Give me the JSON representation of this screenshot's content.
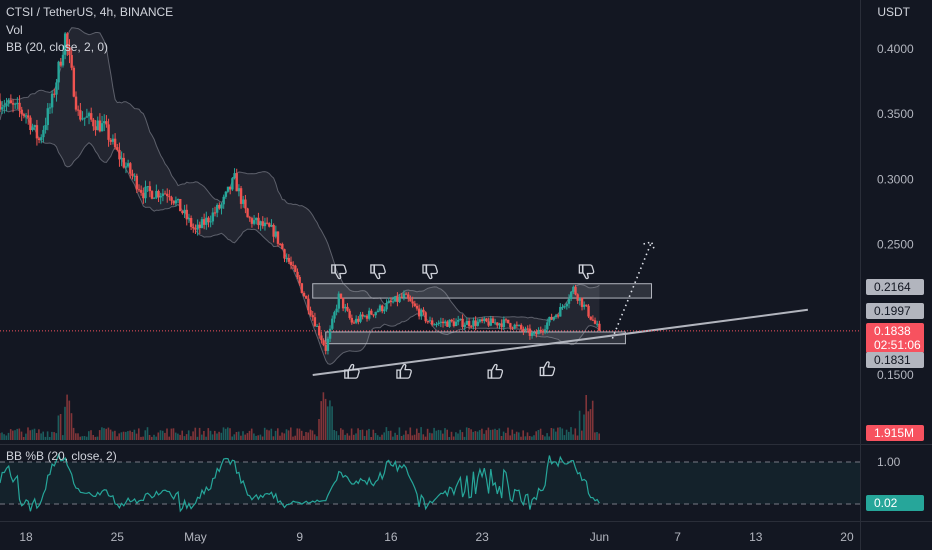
{
  "legend": {
    "symbol": "CTSI / TetherUS, 4h, BINANCE",
    "vol": "Vol",
    "bb": "BB (20, close, 2, 0)",
    "bbp": "BB %B (20, close, 2)"
  },
  "axis": {
    "unit": "USDT",
    "price_ticks": [
      "0.4000",
      "0.3500",
      "0.3000",
      "0.2500",
      "0.1500"
    ],
    "price_tick_values": [
      0.4,
      0.35,
      0.3,
      0.25,
      0.15
    ],
    "bbp_ticks": [
      "1.00"
    ],
    "date_ticks": [
      "18",
      "25",
      "May",
      "9",
      "16",
      "23",
      "Jun",
      "7",
      "13",
      "20"
    ]
  },
  "badges": {
    "upper_zone": "0.2164",
    "level_1997": "0.1997",
    "last_price": "0.1838",
    "countdown": "02:51:06",
    "lower_zone": "0.1831",
    "volume": "1.915M",
    "bbp_value": "0.02"
  },
  "colors": {
    "background": "#131722",
    "up": "#26a69a",
    "down": "#ef5350",
    "last_price": "#f7525f",
    "trendline": "#b2b5be",
    "bbp_line": "#26a69a"
  },
  "chart_data": {
    "type": "candlestick",
    "timeframe": "4h",
    "x_range": [
      "2021-04-16",
      "2021-06-21"
    ],
    "ylim": [
      0.135,
      0.415
    ],
    "log_scale": false,
    "grid": false,
    "key_points": [
      {
        "date": "2021-04-16",
        "price": 0.36
      },
      {
        "date": "2021-04-18",
        "price": 0.35
      },
      {
        "date": "2021-04-19",
        "price": 0.33
      },
      {
        "date": "2021-04-20",
        "price": 0.36
      },
      {
        "date": "2021-04-21",
        "price": 0.41
      },
      {
        "date": "2021-04-22",
        "price": 0.35
      },
      {
        "date": "2021-04-24",
        "price": 0.34
      },
      {
        "date": "2021-04-25",
        "price": 0.32
      },
      {
        "date": "2021-04-27",
        "price": 0.29
      },
      {
        "date": "2021-04-29",
        "price": 0.29
      },
      {
        "date": "2021-05-01",
        "price": 0.26
      },
      {
        "date": "2021-05-03",
        "price": 0.28
      },
      {
        "date": "2021-05-04",
        "price": 0.3
      },
      {
        "date": "2021-05-05",
        "price": 0.27
      },
      {
        "date": "2021-05-07",
        "price": 0.26
      },
      {
        "date": "2021-05-09",
        "price": 0.22
      },
      {
        "date": "2021-05-11",
        "price": 0.17
      },
      {
        "date": "2021-05-12",
        "price": 0.21
      },
      {
        "date": "2021-05-13",
        "price": 0.19
      },
      {
        "date": "2021-05-15",
        "price": 0.2
      },
      {
        "date": "2021-05-17",
        "price": 0.21
      },
      {
        "date": "2021-05-19",
        "price": 0.19
      },
      {
        "date": "2021-05-21",
        "price": 0.19
      },
      {
        "date": "2021-05-23",
        "price": 0.19
      },
      {
        "date": "2021-05-25",
        "price": 0.19
      },
      {
        "date": "2021-05-27",
        "price": 0.18
      },
      {
        "date": "2021-05-29",
        "price": 0.2
      },
      {
        "date": "2021-05-30",
        "price": 0.216
      },
      {
        "date": "2021-06-01",
        "price": 0.1838
      }
    ],
    "volume_spikes": [
      {
        "date": "2021-04-21",
        "note": "high"
      },
      {
        "date": "2021-05-11",
        "note": "highest"
      },
      {
        "date": "2021-05-31",
        "note": "high"
      }
    ],
    "volume_last": "1.915M",
    "bbp_levels": [
      0,
      1
    ],
    "bbp_last": 0.02,
    "zones": [
      {
        "from": "2021-05-10",
        "to": "2021-06-05",
        "low": 0.209,
        "high": 0.22
      },
      {
        "from": "2021-05-11",
        "to": "2021-06-03",
        "low": 0.174,
        "high": 0.183
      }
    ],
    "trendline": [
      {
        "date": "2021-05-10",
        "price": 0.15
      },
      {
        "date": "2021-06-17",
        "price": 0.2
      }
    ],
    "projection": [
      {
        "date": "2021-06-02",
        "price": 0.178
      },
      {
        "date": "2021-06-05",
        "price": 0.252
      }
    ],
    "annotations": [
      {
        "icon": "thumbs-down-icon",
        "date": "2021-05-12",
        "price": 0.229
      },
      {
        "icon": "thumbs-down-icon",
        "date": "2021-05-15",
        "price": 0.229
      },
      {
        "icon": "thumbs-down-icon",
        "date": "2021-05-19",
        "price": 0.229
      },
      {
        "icon": "thumbs-down-icon",
        "date": "2021-05-31",
        "price": 0.229
      },
      {
        "icon": "thumbs-up-icon",
        "date": "2021-05-13",
        "price": 0.153
      },
      {
        "icon": "thumbs-up-icon",
        "date": "2021-05-17",
        "price": 0.153
      },
      {
        "icon": "thumbs-up-icon",
        "date": "2021-05-24",
        "price": 0.153
      },
      {
        "icon": "thumbs-up-icon",
        "date": "2021-05-28",
        "price": 0.155
      }
    ]
  }
}
